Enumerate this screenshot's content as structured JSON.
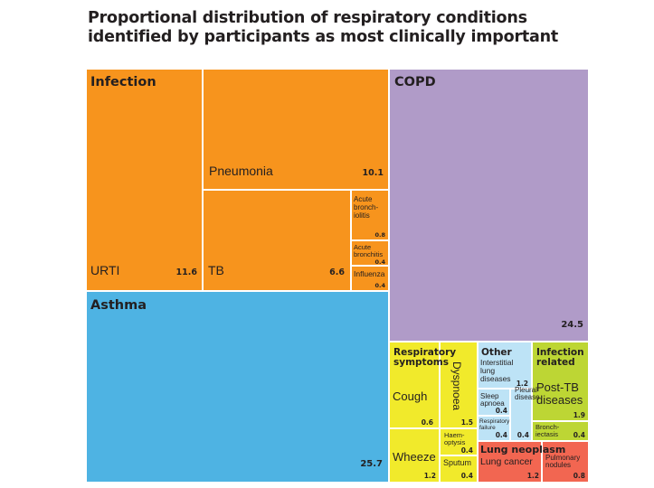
{
  "chart_data": {
    "type": "treemap",
    "title": "Proportional distribution of respiratory conditions identified by participants as most clinically important",
    "title_lines": [
      "Proportional distribution of respiratory conditions",
      "identified by participants as most clinically important"
    ],
    "colors": {
      "infection": "#f7941d",
      "copd": "#b09bc8",
      "asthma": "#4eb3e3",
      "respiratory_symptoms": "#f1ea2b",
      "other": "#bde3f6",
      "infection_related": "#bdd634",
      "lung_neoplasm": "#f26651",
      "border": "#ffffff"
    },
    "groups": [
      {
        "id": "infection",
        "name": "Infection",
        "items": [
          {
            "name": "URTI",
            "value": 11.6
          },
          {
            "name": "Pneumonia",
            "value": 10.1
          },
          {
            "name": "TB",
            "value": 6.6
          },
          {
            "name": "Acute bronch- iolitis",
            "value": 0.8
          },
          {
            "name": "Acute bronchitis",
            "value": 0.4
          },
          {
            "name": "Influenza",
            "value": 0.4
          }
        ]
      },
      {
        "id": "copd",
        "name": "COPD",
        "value": 24.5
      },
      {
        "id": "asthma",
        "name": "Asthma",
        "value": 25.7
      },
      {
        "id": "respiratory_symptoms",
        "name": "Respiratory symptoms",
        "items": [
          {
            "name": "Cough",
            "value": 0.6
          },
          {
            "name": "Dyspnoea",
            "value": 1.5
          },
          {
            "name": "Wheeze",
            "value": 1.2
          },
          {
            "name": "Haem- optysis",
            "value": 0.4
          },
          {
            "name": "Sputum",
            "value": 0.4
          }
        ]
      },
      {
        "id": "other",
        "name": "Other",
        "items": [
          {
            "name": "Interstitial lung diseases",
            "value": 1.2
          },
          {
            "name": "Sleep apnoea",
            "value": 0.4
          },
          {
            "name": "Pleural disease",
            "value": 0.4
          },
          {
            "name": "Respiratory failure",
            "value": 0.4
          }
        ]
      },
      {
        "id": "infection_related",
        "name": "Infection related",
        "items": [
          {
            "name": "Post-TB diseases",
            "value": 1.9
          },
          {
            "name": "Bronch- iectasis",
            "value": 0.4
          }
        ]
      },
      {
        "id": "lung_neoplasm",
        "name": "Lung neoplasm",
        "items": [
          {
            "name": "Lung cancer",
            "value": 1.2
          },
          {
            "name": "Pulmonary nodules",
            "value": 0.8
          }
        ]
      }
    ]
  }
}
